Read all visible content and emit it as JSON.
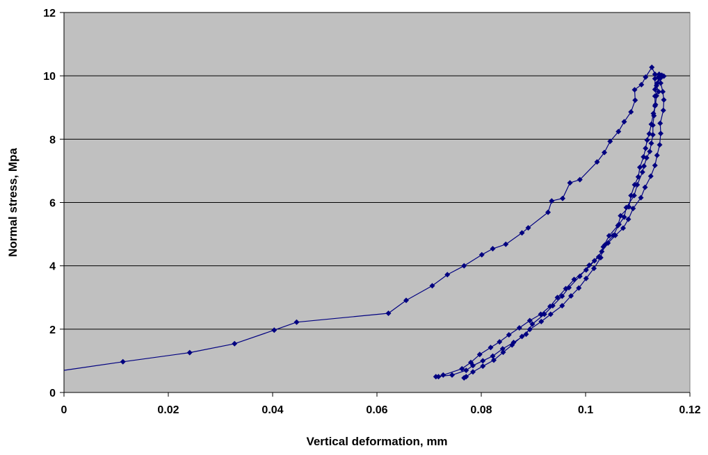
{
  "chart_data": {
    "type": "scatter",
    "title": "",
    "xlabel": "Vertical deformation, mm",
    "ylabel": "Normal stress, Mpa",
    "xlim": [
      0,
      0.12
    ],
    "ylim": [
      0,
      12
    ],
    "xticks": [
      "0",
      "0.02",
      "0.04",
      "0.06",
      "0.08",
      "0.1",
      "0.12"
    ],
    "yticks": [
      "0",
      "2",
      "4",
      "6",
      "8",
      "10",
      "12"
    ],
    "grid": "horizontal",
    "plot_background": "#c0c0c0",
    "series_color": "#000080",
    "marker": "diamond",
    "legend": "none",
    "series": [
      {
        "x": [
          0.0,
          0.0113,
          0.0241,
          0.0327,
          0.0403,
          0.0446,
          0.0622,
          0.0656,
          0.0706,
          0.0735,
          0.0767,
          0.0801,
          0.0822,
          0.0847,
          0.0878,
          0.089,
          0.0928,
          0.0935,
          0.0956,
          0.097,
          0.0989,
          0.1022,
          0.1036,
          0.1047,
          0.1063,
          0.1074,
          0.1087,
          0.1095,
          0.1094,
          0.1107,
          0.1115,
          0.1127,
          0.1133,
          0.114,
          0.1137,
          0.1145,
          0.115,
          0.1144,
          0.1146,
          0.1143,
          0.1136,
          0.114,
          0.1133,
          0.1133,
          0.1131,
          0.1129,
          0.1129,
          0.1126,
          0.1123,
          0.1117,
          0.1112,
          0.1109,
          0.1099,
          0.1093,
          0.1078,
          0.1074,
          0.1064,
          0.1053,
          0.1037,
          0.1025,
          0.1007,
          0.0989,
          0.0968,
          0.0955,
          0.0937,
          0.0921,
          0.0898,
          0.0886,
          0.0862,
          0.0841,
          0.0822,
          0.0803,
          0.0784,
          0.0771,
          0.0744,
          0.0713,
          0.0718,
          0.0727,
          0.0763,
          0.078,
          0.0797,
          0.0818,
          0.0835,
          0.0853,
          0.0873,
          0.0893,
          0.0914,
          0.0932,
          0.0946,
          0.0962,
          0.0978,
          0.1001,
          0.1017,
          0.1031,
          0.1043,
          0.1057,
          0.1072,
          0.1082,
          0.1091,
          0.1106,
          0.1114,
          0.1125,
          0.1133,
          0.1137,
          0.1142,
          0.1144,
          0.1143,
          0.1149,
          0.115,
          0.1148,
          0.1144,
          0.1141,
          0.1133,
          0.1133,
          0.1136,
          0.1134,
          0.113,
          0.1126,
          0.1122,
          0.1118,
          0.1115,
          0.1111,
          0.1104,
          0.1101,
          0.1094,
          0.1087,
          0.1083,
          0.1067,
          0.1062,
          0.1045,
          0.1034,
          0.1029,
          0.1016,
          0.1001,
          0.0987,
          0.0972,
          0.0955,
          0.0933,
          0.0915,
          0.0893,
          0.0878,
          0.0859,
          0.0842,
          0.0824,
          0.0803,
          0.0784,
          0.0771,
          0.0767
        ],
        "y": [
          0.7,
          0.97,
          1.26,
          1.54,
          1.97,
          2.22,
          2.5,
          2.91,
          3.37,
          3.72,
          4.0,
          4.35,
          4.54,
          4.68,
          5.04,
          5.2,
          5.69,
          6.05,
          6.13,
          6.62,
          6.72,
          7.28,
          7.58,
          7.93,
          8.24,
          8.55,
          8.86,
          9.23,
          9.56,
          9.72,
          9.96,
          10.27,
          10.05,
          9.94,
          9.76,
          10.0,
          9.99,
          9.95,
          10.02,
          9.92,
          9.69,
          9.5,
          9.36,
          9.05,
          8.74,
          8.44,
          8.14,
          7.87,
          7.61,
          7.41,
          7.15,
          6.96,
          6.56,
          6.22,
          5.84,
          5.54,
          5.31,
          4.96,
          4.66,
          4.28,
          4.02,
          3.67,
          3.31,
          3.04,
          2.74,
          2.47,
          2.16,
          1.84,
          1.58,
          1.38,
          1.15,
          1.0,
          0.85,
          0.7,
          0.55,
          0.5,
          0.5,
          0.55,
          0.75,
          0.95,
          1.2,
          1.42,
          1.6,
          1.82,
          2.04,
          2.27,
          2.47,
          2.72,
          3.0,
          3.28,
          3.57,
          3.87,
          4.16,
          4.45,
          4.72,
          4.96,
          5.19,
          5.47,
          5.81,
          6.15,
          6.48,
          6.83,
          7.17,
          7.49,
          7.82,
          8.18,
          8.5,
          8.91,
          9.24,
          9.5,
          9.77,
          10.05,
          9.91,
          9.57,
          9.37,
          9.09,
          8.81,
          8.47,
          8.17,
          7.97,
          7.71,
          7.44,
          7.11,
          6.81,
          6.56,
          6.22,
          5.86,
          5.58,
          5.27,
          4.95,
          4.6,
          4.26,
          3.92,
          3.6,
          3.3,
          3.05,
          2.74,
          2.47,
          2.24,
          1.99,
          1.77,
          1.5,
          1.27,
          1.02,
          0.83,
          0.65,
          0.5,
          0.46
        ]
      }
    ]
  }
}
